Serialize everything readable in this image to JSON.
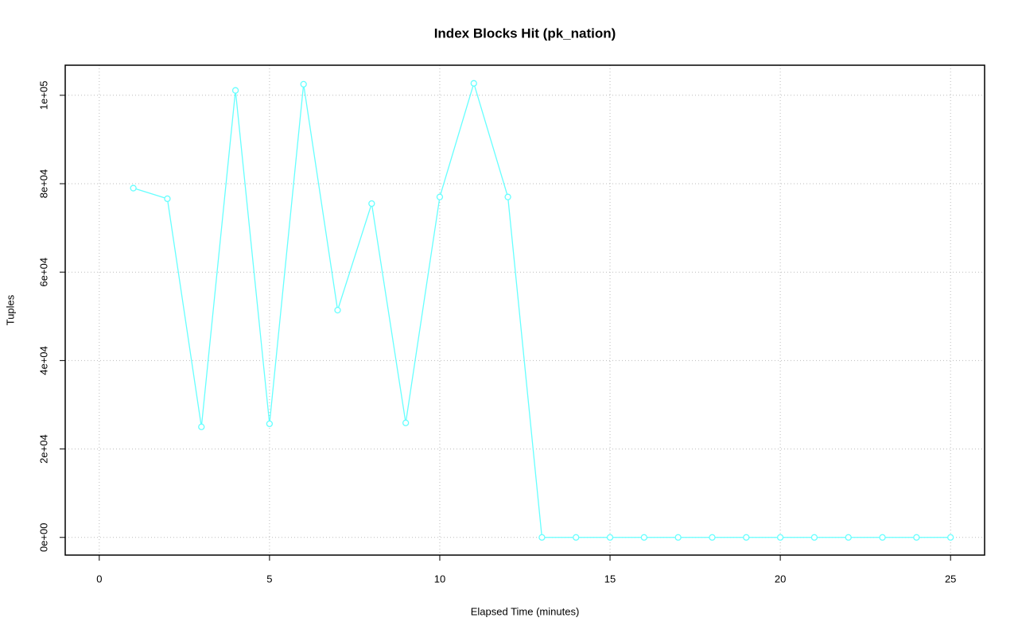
{
  "chart_data": {
    "type": "line",
    "title": "Index Blocks Hit (pk_nation)",
    "x_label": "Elapsed Time (minutes)",
    "y_label": "Tuples",
    "x": [
      1,
      2,
      3,
      4,
      5,
      6,
      7,
      8,
      9,
      10,
      11,
      12,
      13,
      14,
      15,
      16,
      17,
      18,
      19,
      20,
      21,
      22,
      23,
      24,
      25
    ],
    "series": [
      {
        "color": "#66ffff",
        "values": [
          79000,
          76600,
          25000,
          101100,
          25700,
          102500,
          51400,
          75500,
          25900,
          77000,
          102700,
          77000,
          0,
          0,
          0,
          0,
          0,
          0,
          0,
          0,
          0,
          0,
          0,
          0,
          0
        ]
      }
    ],
    "xlim": [
      -1,
      26
    ],
    "xticks": [
      0,
      5,
      10,
      15,
      20,
      25
    ],
    "ylim": [
      -4000,
      106800
    ],
    "yticks": [
      {
        "value": 0,
        "label": "0e+00"
      },
      {
        "value": 20000,
        "label": "2e+04"
      },
      {
        "value": 40000,
        "label": "4e+04"
      },
      {
        "value": 60000,
        "label": "6e+04"
      },
      {
        "value": 80000,
        "label": "8e+04"
      },
      {
        "value": 100000,
        "label": "1e+05"
      }
    ],
    "grid": true
  }
}
